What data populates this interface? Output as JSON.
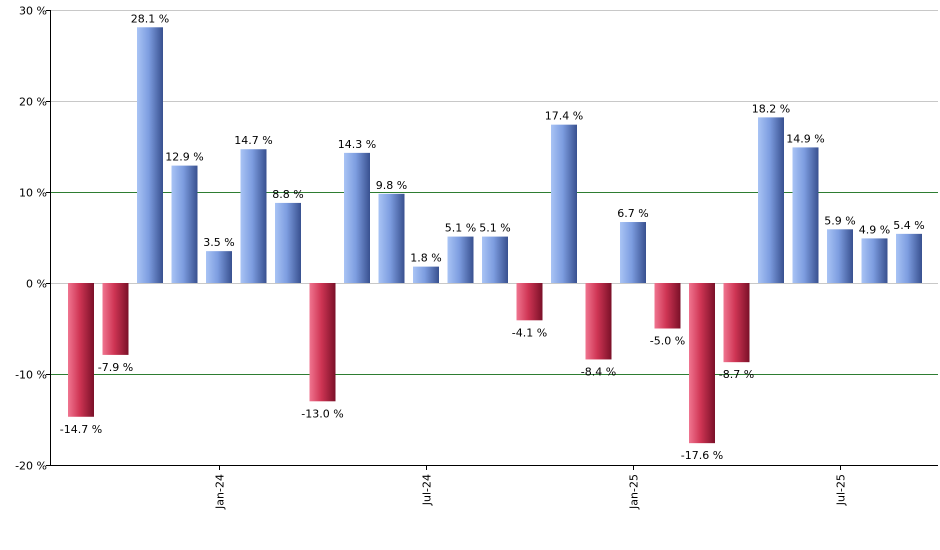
{
  "chart_data": {
    "type": "bar",
    "title": "",
    "xlabel": "",
    "ylabel": "",
    "ylim": [
      -20,
      30
    ],
    "y_ticks": [
      -20,
      -10,
      0,
      10,
      20,
      30
    ],
    "y_tick_labels": [
      "-20 %",
      "-10 %",
      "0 %",
      "10 %",
      "20 %",
      "30 %"
    ],
    "x_tick_labels": [
      "Jan-24",
      "Jul-24",
      "Jan-25",
      "Jul-25"
    ],
    "x_tick_bar_index": [
      4,
      10,
      16,
      22
    ],
    "grid": true,
    "highlight_gridlines": [
      -10,
      10
    ],
    "colors": {
      "positive": "#6f8fd8",
      "negative": "#c8304f",
      "grid": "#c8c8c8",
      "highlight_grid": "#2e7d32",
      "axis": "#000000"
    },
    "values": [
      -14.7,
      -7.9,
      28.1,
      12.9,
      3.5,
      14.7,
      8.8,
      -13.0,
      14.3,
      9.8,
      1.8,
      5.1,
      5.1,
      -4.1,
      17.4,
      -8.4,
      6.7,
      -5.0,
      -17.6,
      -8.7,
      18.2,
      14.9,
      5.9,
      4.9,
      5.4
    ],
    "value_labels": [
      "-14.7 %",
      "-7.9 %",
      "28.1 %",
      "12.9 %",
      "3.5 %",
      "14.7 %",
      "8.8 %",
      "-13.0 %",
      "14.3 %",
      "9.8 %",
      "1.8 %",
      "5.1 %",
      "5.1 %",
      "-4.1 %",
      "17.4 %",
      "-8.4 %",
      "6.7 %",
      "-5.0 %",
      "-17.6 %",
      "-8.7 %",
      "18.2 %",
      "14.9 %",
      "5.9 %",
      "4.9 %",
      "5.4 %"
    ]
  }
}
